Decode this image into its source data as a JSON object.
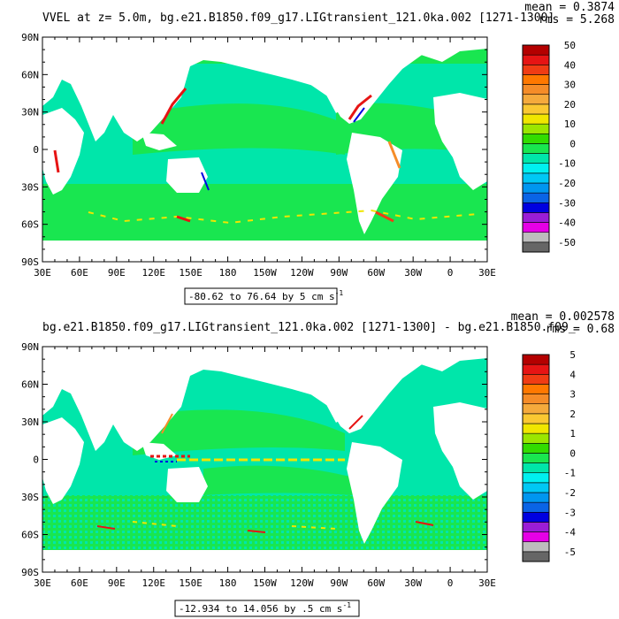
{
  "colorbar_colors": [
    "#666666",
    "#bdbdbd",
    "#e600e6",
    "#9b1dd6",
    "#0000e0",
    "#0a64e6",
    "#0096f0",
    "#00c8f5",
    "#00f0f0",
    "#00e6aa",
    "#19e650",
    "#32dc00",
    "#9be600",
    "#f0e600",
    "#fac832",
    "#f5aa3c",
    "#f58c28",
    "#ff7800",
    "#f03c14",
    "#e61414",
    "#b40000"
  ],
  "land_color": "#ffffff",
  "panels": [
    {
      "title": "VVEL at z=    5.0m, bg.e21.B1850.f09_g17.LIGtransient_121.0ka.002 [1271-1300]",
      "mean_text": "mean = 0.3874",
      "rms_text": "rms = 5.268",
      "range_label": "-80.62 to 76.64 by 5 cm s",
      "range_unit_sup": "-1",
      "colorbar_labels": [
        "50",
        "40",
        "30",
        "20",
        "10",
        "0",
        "-10",
        "-20",
        "-30",
        "-40",
        "-50"
      ],
      "x_tick_labels": [
        "30E",
        "60E",
        "90E",
        "120E",
        "150E",
        "180",
        "150W",
        "120W",
        "90W",
        "60W",
        "30W",
        "0",
        "30E"
      ],
      "y_tick_labels": [
        "90N",
        "60N",
        "30N",
        "0",
        "30S",
        "60S",
        "90S"
      ],
      "chart_data": {
        "type": "heatmap",
        "variable": "VVEL",
        "depth_m": 5.0,
        "period": [
          1271,
          1300
        ],
        "mean": 0.3874,
        "rms": 5.268,
        "min": -80.62,
        "max": 76.64,
        "contour_interval": 5,
        "units": "cm s-1",
        "colorbar_range": [
          -50,
          50
        ],
        "xlim_lon": [
          30,
          390
        ],
        "ylim_lat": [
          -90,
          90
        ]
      }
    },
    {
      "title": "bg.e21.B1850.f09_g17.LIGtransient_121.0ka.002 [1271-1300] - bg.e21.B1850.f09_",
      "mean_text": "mean = 0.002578",
      "rms_text": "rms = 0.68",
      "range_label": "-12.934 to 14.056 by .5 cm s",
      "range_unit_sup": "-1",
      "colorbar_labels": [
        "5",
        "4",
        "3",
        "2",
        "1",
        "0",
        "-1",
        "-2",
        "-3",
        "-4",
        "-5"
      ],
      "x_tick_labels": [
        "30E",
        "60E",
        "90E",
        "120E",
        "150E",
        "180",
        "150W",
        "120W",
        "90W",
        "60W",
        "30W",
        "0",
        "30E"
      ],
      "y_tick_labels": [
        "90N",
        "60N",
        "30N",
        "0",
        "30S",
        "60S",
        "90S"
      ],
      "chart_data": {
        "type": "heatmap",
        "variable": "VVEL difference",
        "period": [
          1271,
          1300
        ],
        "mean": 0.002578,
        "rms": 0.68,
        "min": -12.934,
        "max": 14.056,
        "contour_interval": 0.5,
        "units": "cm s-1",
        "colorbar_range": [
          -5,
          5
        ],
        "xlim_lon": [
          30,
          390
        ],
        "ylim_lat": [
          -90,
          90
        ]
      }
    }
  ]
}
